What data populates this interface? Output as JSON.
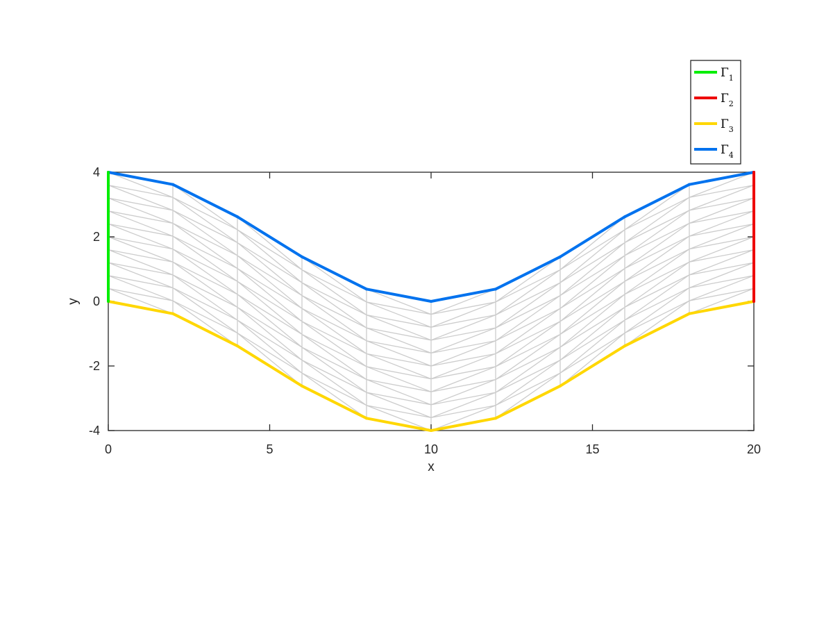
{
  "chart_data": {
    "type": "line",
    "title": "",
    "xlabel": "x",
    "ylabel": "y",
    "xlim": [
      0,
      20
    ],
    "ylim": [
      -4,
      4
    ],
    "xticks": [
      0,
      5,
      10,
      15,
      20
    ],
    "yticks": [
      -4,
      -2,
      0,
      2,
      4
    ],
    "grid": false,
    "legend_position": "top-right, outside above axes",
    "mesh": {
      "color": "#cccccc",
      "x_columns": [
        0,
        2,
        4,
        6,
        8,
        10,
        12,
        14,
        16,
        18,
        20
      ],
      "top_y": [
        4,
        3.62,
        2.62,
        1.38,
        0.38,
        0,
        0.38,
        1.38,
        2.62,
        3.62,
        4
      ],
      "bottom_y": [
        0,
        -0.38,
        -1.38,
        -2.62,
        -3.62,
        -4,
        -3.62,
        -2.62,
        -1.38,
        -0.38,
        0
      ],
      "subdivisions": 10
    },
    "series": [
      {
        "name": "Γ",
        "subscript": "1",
        "color": "#00ee00",
        "x": [
          0,
          0
        ],
        "y": [
          0,
          4
        ]
      },
      {
        "name": "Γ",
        "subscript": "2",
        "color": "#ee0000",
        "x": [
          20,
          20
        ],
        "y": [
          0,
          4
        ]
      },
      {
        "name": "Γ",
        "subscript": "3",
        "color": "#ffd700",
        "x": [
          0,
          2,
          4,
          6,
          8,
          10,
          12,
          14,
          16,
          18,
          20
        ],
        "y": [
          0,
          -0.38,
          -1.38,
          -2.62,
          -3.62,
          -4,
          -3.62,
          -2.62,
          -1.38,
          -0.38,
          0
        ]
      },
      {
        "name": "Γ",
        "subscript": "4",
        "color": "#0072ee",
        "x": [
          0,
          2,
          4,
          6,
          8,
          10,
          12,
          14,
          16,
          18,
          20
        ],
        "y": [
          4,
          3.62,
          2.62,
          1.38,
          0.38,
          0,
          0.38,
          1.38,
          2.62,
          3.62,
          4
        ]
      }
    ]
  }
}
